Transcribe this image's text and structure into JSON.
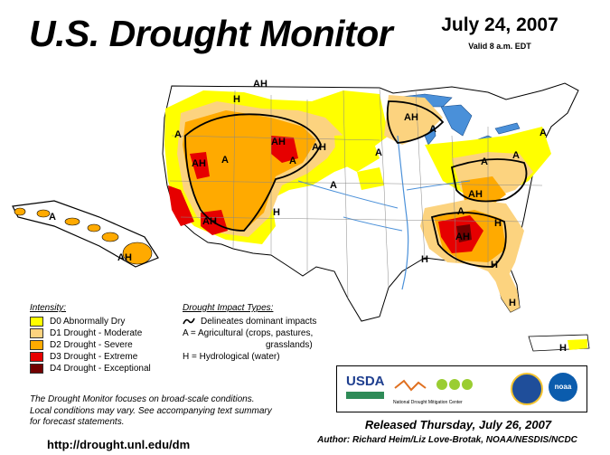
{
  "header": {
    "title": "U.S. Drought Monitor",
    "date": "July 24, 2007",
    "valid": "Valid 8 a.m. EDT"
  },
  "legend": {
    "intensity_title": "Intensity:",
    "items": [
      {
        "label": "D0 Abnormally Dry",
        "color": "#ffff00"
      },
      {
        "label": "D1 Drought - Moderate",
        "color": "#fcd37f"
      },
      {
        "label": "D2 Drought - Severe",
        "color": "#ffaa00"
      },
      {
        "label": "D3 Drought - Extreme",
        "color": "#e60000"
      },
      {
        "label": "D4 Drought - Exceptional",
        "color": "#730000"
      }
    ],
    "impact_title": "Drought Impact Types:",
    "impact_lines": [
      "Delineates dominant impacts",
      "A = Agricultural (crops, pastures,",
      "grasslands)",
      "H = Hydrological (water)"
    ]
  },
  "disclaimer": [
    "The Drought Monitor focuses on broad-scale conditions.",
    "Local conditions may vary. See accompanying text summary",
    "for forecast statements."
  ],
  "footer": {
    "url": "http://drought.unl.edu/dm",
    "released": "Released Thursday, July 26, 2007",
    "author": "Author: Richard Heim/Liz Love-Brotak, NOAA/NESDIS/NCDC"
  },
  "logos": {
    "usda": "USDA",
    "ndmc": "National Drought Mitigation Center",
    "noaa": "noaa"
  },
  "map_labels": {
    "hawaii_a": "A",
    "hawaii_ah": "AH",
    "puerto_rico_h": "H",
    "mt_ah": "AH",
    "mt_h": "H",
    "nw_a": "A",
    "nv_ah": "AH",
    "nv_a": "A",
    "id_ah": "AH",
    "wy_a": "A",
    "sd_ah": "AH",
    "az_ah": "AH",
    "co_h": "H",
    "ne_a": "A",
    "mn_a": "A",
    "wi_ah": "AH",
    "mi_a": "A",
    "in_a": "A",
    "oh_a": "A",
    "ne2_a": "A",
    "ky_ah": "AH",
    "sc_h": "H",
    "al_ah": "AH",
    "la_h": "H",
    "ga_h": "H",
    "fl_h": "H",
    "tn_a": "A"
  }
}
